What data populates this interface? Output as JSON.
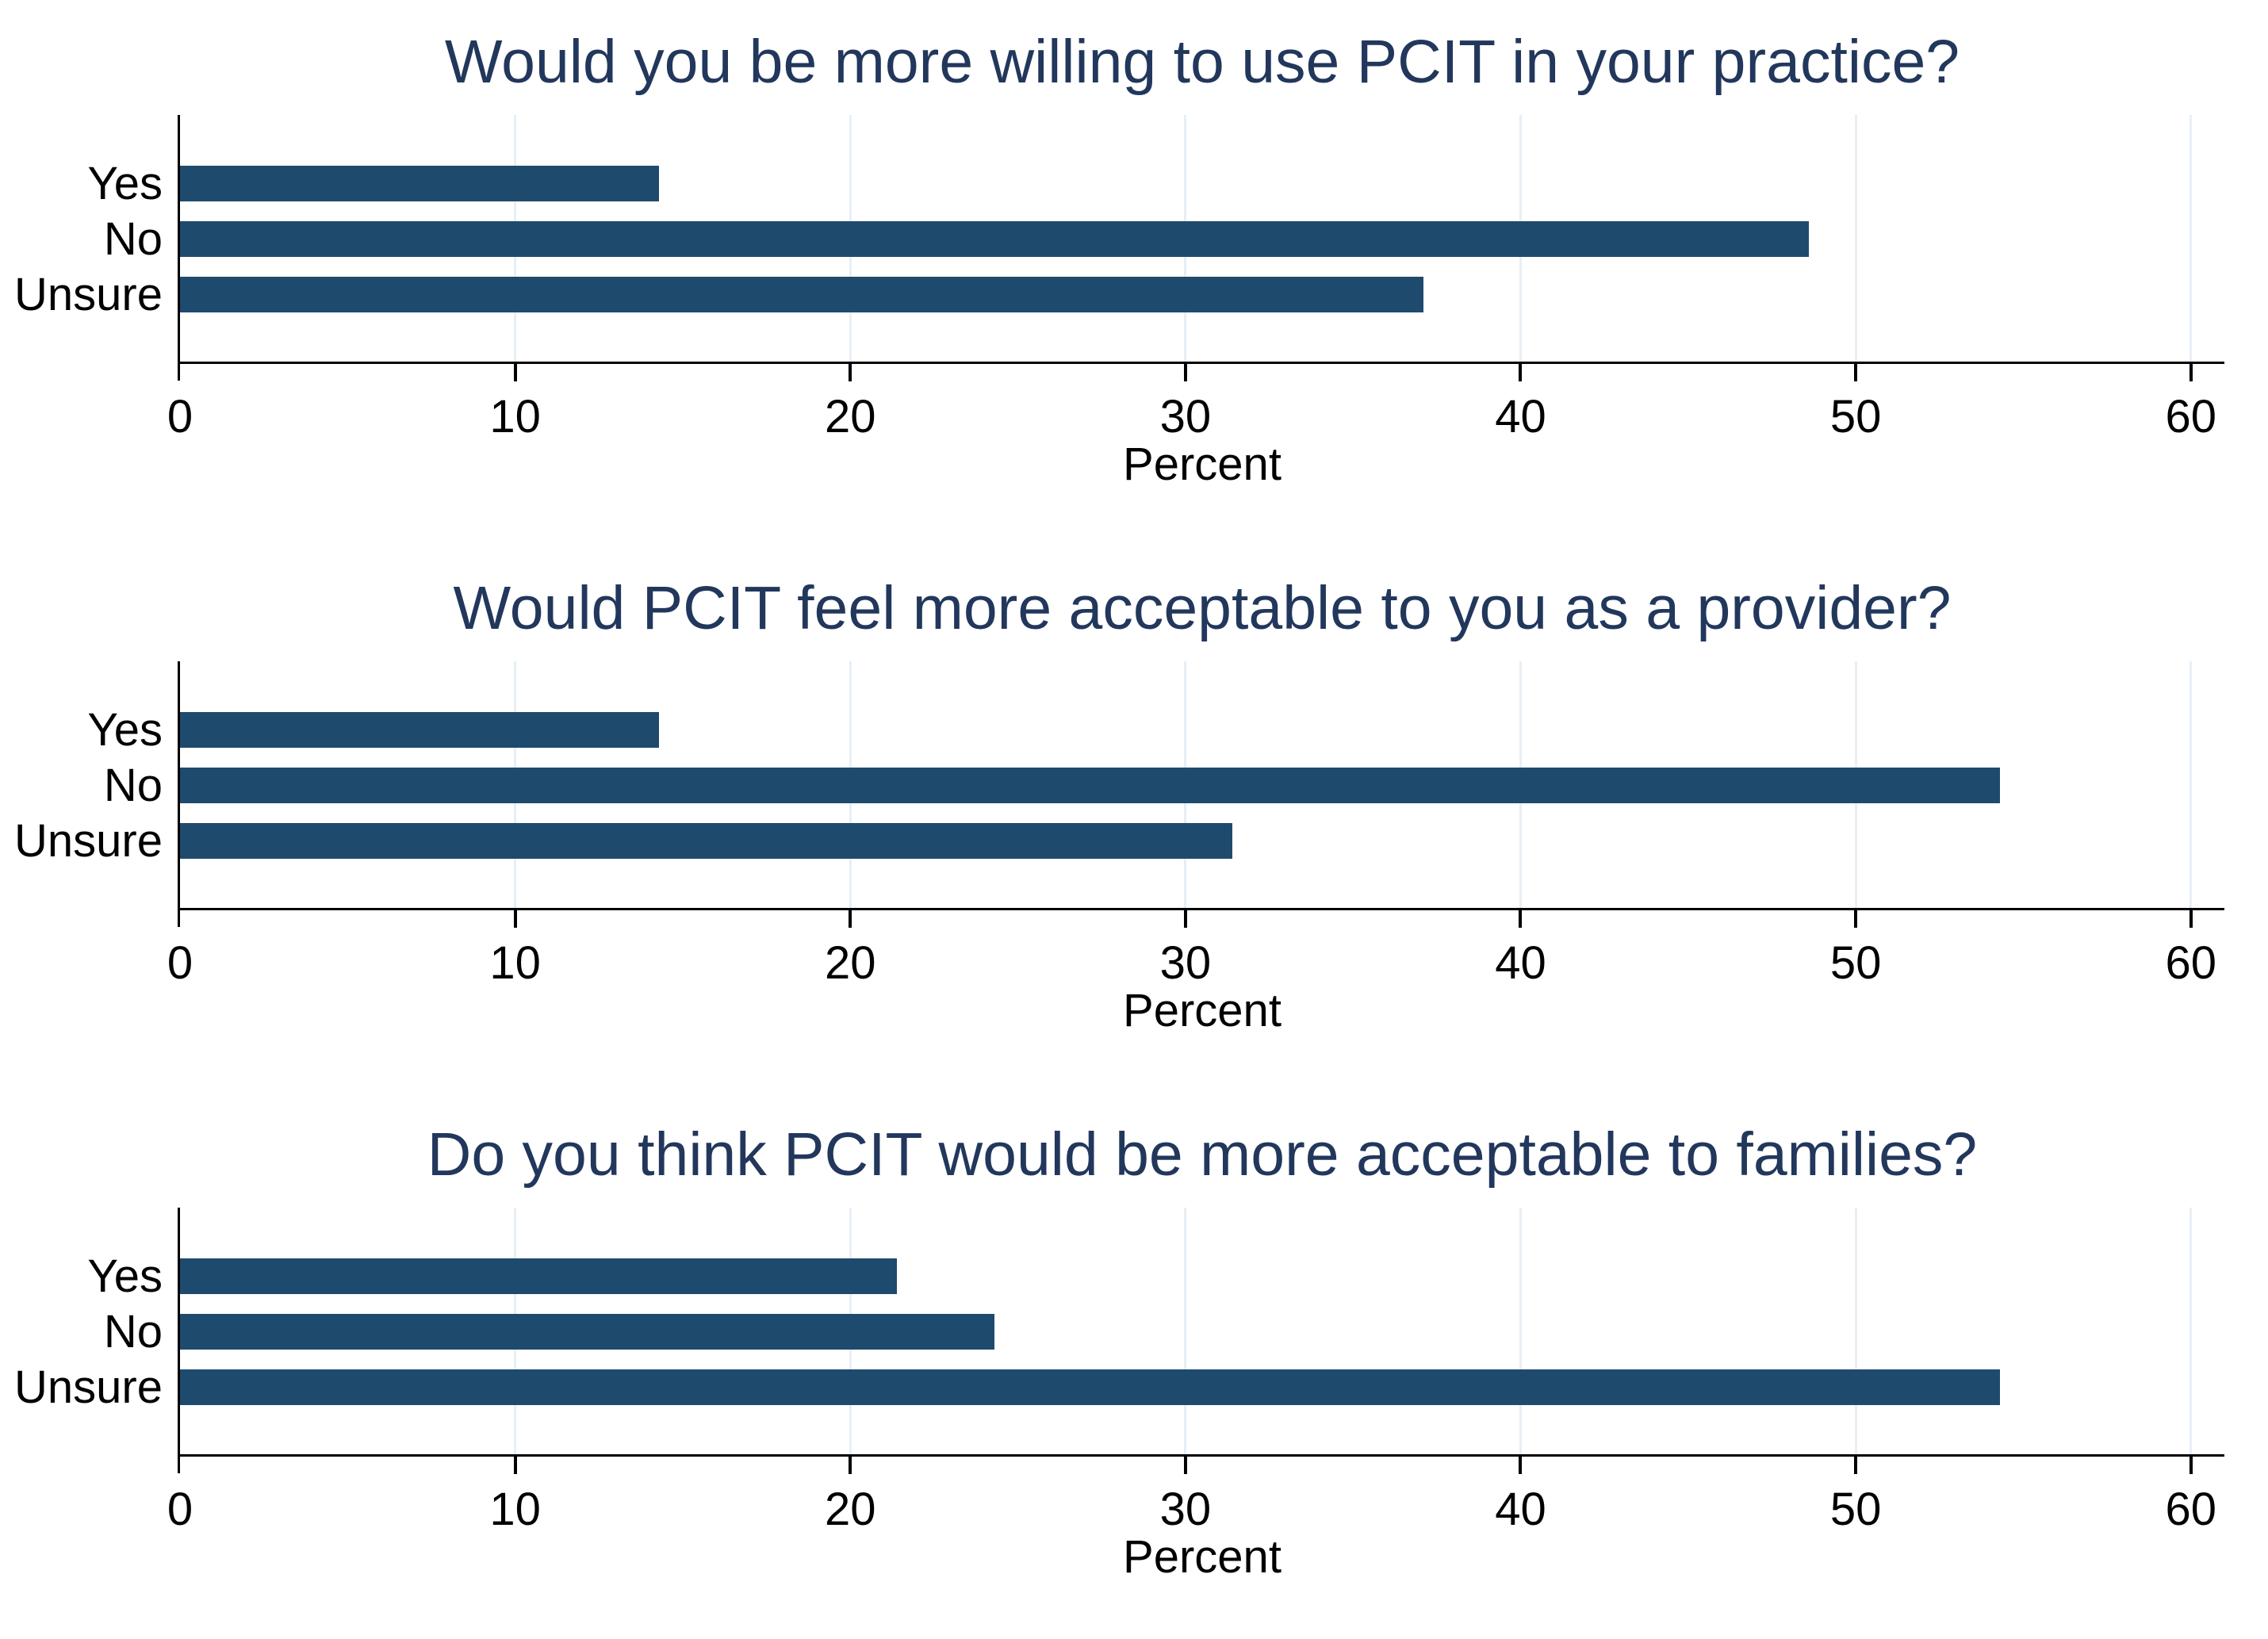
{
  "figure": {
    "kind": "three stacked horizontal bar charts",
    "background": "#FFFFFF"
  },
  "colors": {
    "bar": "#1E4A6E",
    "title": "#22375C",
    "axis": "#000000",
    "gridline": "#E7EFF6",
    "background": "#FFFFFF"
  },
  "chart_data": [
    {
      "type": "bar",
      "orientation": "horizontal",
      "title": "Would you be more willing to use PCIT in your practice?",
      "categories": [
        "Yes",
        "No",
        "Unsure"
      ],
      "values": [
        14.3,
        48.6,
        37.1
      ],
      "xlabel": "Percent",
      "xlim": [
        0,
        61
      ],
      "xticks": [
        0,
        10,
        20,
        30,
        40,
        50,
        60
      ],
      "grid": true,
      "legend": "none"
    },
    {
      "type": "bar",
      "orientation": "horizontal",
      "title": "Would PCIT feel more acceptable to you as a provider?",
      "categories": [
        "Yes",
        "No",
        "Unsure"
      ],
      "values": [
        14.3,
        54.3,
        31.4
      ],
      "xlabel": "Percent",
      "xlim": [
        0,
        61
      ],
      "xticks": [
        0,
        10,
        20,
        30,
        40,
        50,
        60
      ],
      "grid": true,
      "legend": "none"
    },
    {
      "type": "bar",
      "orientation": "horizontal",
      "title": "Do you think PCIT would be more acceptable to families?",
      "categories": [
        "Yes",
        "No",
        "Unsure"
      ],
      "values": [
        21.4,
        24.3,
        54.3
      ],
      "xlabel": "Percent",
      "xlim": [
        0,
        61
      ],
      "xticks": [
        0,
        10,
        20,
        30,
        40,
        50,
        60
      ],
      "grid": true,
      "legend": "none"
    }
  ]
}
